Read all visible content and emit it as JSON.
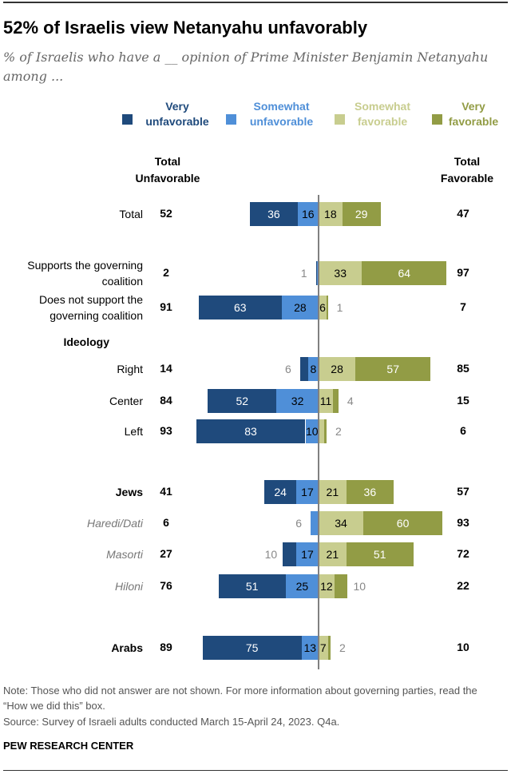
{
  "title": "52% of Israelis view Netanyahu unfavorably",
  "subtitle": "% of Israelis who have a __ opinion of Prime Minister Benjamin Netanyahu among ...",
  "colors": {
    "very_unfavorable": "#1f4a7c",
    "somewhat_unfavorable": "#4f8fd8",
    "somewhat_favorable": "#c8cd8f",
    "very_favorable": "#929c45"
  },
  "legend": [
    "Very unfavorable",
    "Somewhat unfavorable",
    "Somewhat favorable",
    "Very favorable"
  ],
  "col_headers": {
    "unfav": "Total Unfavorable",
    "fav": "Total Favorable"
  },
  "chart_data": {
    "type": "bar",
    "orientation": "diverging-horizontal",
    "series": [
      "Very unfavorable",
      "Somewhat unfavorable",
      "Somewhat favorable",
      "Very favorable"
    ],
    "rows": [
      {
        "label": "Total",
        "style": "normal",
        "tu": "52",
        "tf": "47",
        "segs": [
          {
            "v": 36,
            "l": "36"
          },
          {
            "v": 16,
            "l": "16"
          },
          {
            "v": 18,
            "l": "18"
          },
          {
            "v": 29,
            "l": "29"
          }
        ]
      },
      {
        "label": "Supports the governing coalition",
        "style": "normal",
        "tu": "2",
        "tf": "97",
        "segs": [
          {
            "v": 1,
            "l": "1",
            "out": true
          },
          {
            "v": 1,
            "l": ""
          },
          {
            "v": 33,
            "l": "33"
          },
          {
            "v": 64,
            "l": "64"
          }
        ]
      },
      {
        "label": "Does not support the governing coalition",
        "style": "normal",
        "tu": "91",
        "tf": "7",
        "segs": [
          {
            "v": 63,
            "l": "63"
          },
          {
            "v": 28,
            "l": "28"
          },
          {
            "v": 6,
            "l": "6"
          },
          {
            "v": 1,
            "l": "1",
            "out": true
          }
        ]
      },
      {
        "label": "Ideology",
        "style": "header"
      },
      {
        "label": "Right",
        "style": "normal",
        "tu": "14",
        "tf": "85",
        "segs": [
          {
            "v": 6,
            "l": "6",
            "out": true
          },
          {
            "v": 8,
            "l": "8"
          },
          {
            "v": 28,
            "l": "28"
          },
          {
            "v": 57,
            "l": "57"
          }
        ]
      },
      {
        "label": "Center",
        "style": "normal",
        "tu": "84",
        "tf": "15",
        "segs": [
          {
            "v": 52,
            "l": "52"
          },
          {
            "v": 32,
            "l": "32"
          },
          {
            "v": 11,
            "l": "11"
          },
          {
            "v": 4,
            "l": "4",
            "out": true
          }
        ]
      },
      {
        "label": "Left",
        "style": "normal",
        "tu": "93",
        "tf": "6",
        "segs": [
          {
            "v": 83,
            "l": "83"
          },
          {
            "v": 10,
            "l": "10"
          },
          {
            "v": 4,
            "l": ""
          },
          {
            "v": 2,
            "l": "2",
            "out": true
          }
        ]
      },
      {
        "label": "Jews",
        "style": "bold",
        "tu": "41",
        "tf": "57",
        "segs": [
          {
            "v": 24,
            "l": "24"
          },
          {
            "v": 17,
            "l": "17"
          },
          {
            "v": 21,
            "l": "21"
          },
          {
            "v": 36,
            "l": "36"
          }
        ]
      },
      {
        "label": "Haredi/Dati",
        "style": "italic",
        "tu": "6",
        "tf": "93",
        "segs": [
          {
            "v": 0,
            "l": ""
          },
          {
            "v": 6,
            "l": "6",
            "out": true
          },
          {
            "v": 34,
            "l": "34"
          },
          {
            "v": 60,
            "l": "60"
          }
        ]
      },
      {
        "label": "Masorti",
        "style": "italic",
        "tu": "27",
        "tf": "72",
        "segs": [
          {
            "v": 10,
            "l": "10",
            "out": true
          },
          {
            "v": 17,
            "l": "17"
          },
          {
            "v": 21,
            "l": "21"
          },
          {
            "v": 51,
            "l": "51"
          }
        ]
      },
      {
        "label": "Hiloni",
        "style": "italic",
        "tu": "76",
        "tf": "22",
        "segs": [
          {
            "v": 51,
            "l": "51"
          },
          {
            "v": 25,
            "l": "25"
          },
          {
            "v": 12,
            "l": "12"
          },
          {
            "v": 10,
            "l": "10",
            "out": true
          }
        ]
      },
      {
        "label": "Arabs",
        "style": "bold",
        "tu": "89",
        "tf": "10",
        "segs": [
          {
            "v": 75,
            "l": "75"
          },
          {
            "v": 13,
            "l": "13"
          },
          {
            "v": 7,
            "l": "7"
          },
          {
            "v": 2,
            "l": "2",
            "out": true
          }
        ]
      }
    ]
  },
  "notes": {
    "note": "Note: Those who did not answer are not shown. For more information about governing parties, read the “How we did this” box.",
    "source": "Source: Survey of Israeli adults conducted March 15-April 24, 2023. Q4a.",
    "brand": "PEW RESEARCH CENTER"
  }
}
